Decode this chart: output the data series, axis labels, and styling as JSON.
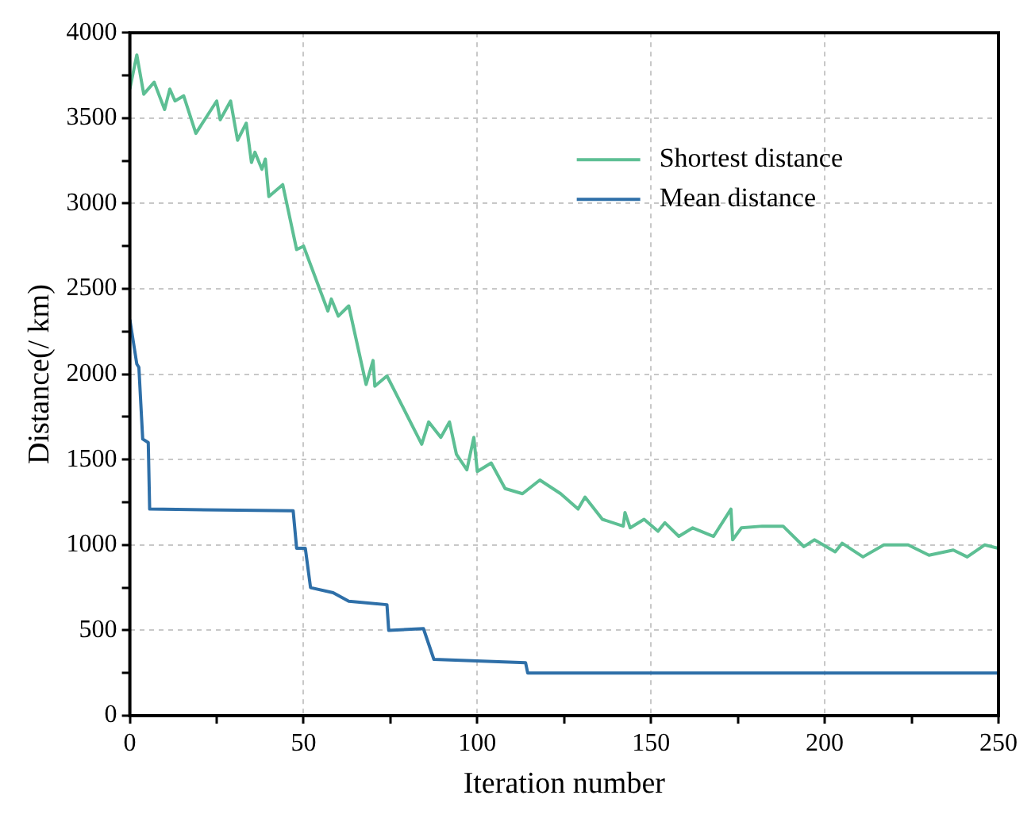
{
  "chart_data": {
    "type": "line",
    "xlabel": "Iteration number",
    "ylabel": "Distance(/ km)",
    "xlim": [
      0,
      250
    ],
    "ylim": [
      0,
      4000
    ],
    "xticks": [
      0,
      {
        "value": 25,
        "label": null
      },
      50,
      {
        "value": 75,
        "label": null
      },
      100,
      {
        "value": 125,
        "label": null
      },
      150,
      {
        "value": 175,
        "label": null
      },
      200,
      {
        "value": 225,
        "label": null
      },
      250
    ],
    "yticks": [
      0,
      {
        "value": 250,
        "label": null
      },
      500,
      {
        "value": 750,
        "label": null
      },
      1000,
      {
        "value": 1250,
        "label": null
      },
      1500,
      {
        "value": 1750,
        "label": null
      },
      2000,
      {
        "value": 2250,
        "label": null
      },
      2500,
      {
        "value": 2750,
        "label": null
      },
      3000,
      {
        "value": 3250,
        "label": null
      },
      3500,
      {
        "value": 3750,
        "label": null
      },
      4000
    ],
    "grid": true,
    "legend": "top right",
    "marker": "none",
    "line_style": "solid",
    "series": [
      {
        "name": "Shortest distance",
        "color": "#5dbf94",
        "x": [
          0,
          2,
          4,
          7,
          10,
          11.5,
          13,
          15.5,
          19,
          25,
          26,
          29,
          31,
          33.5,
          35,
          36,
          38,
          39,
          40,
          44,
          48,
          50,
          57,
          58,
          60,
          63,
          68,
          70,
          70.5,
          74,
          84,
          86,
          89.5,
          92,
          94,
          97,
          99,
          100,
          104,
          108,
          113,
          118,
          124,
          129,
          131,
          136,
          142,
          142.5,
          144,
          148,
          152,
          154,
          158,
          162,
          168,
          173,
          173.5,
          176,
          182,
          188,
          194,
          197,
          203,
          205,
          211,
          217,
          224,
          230,
          237,
          241,
          246,
          250
        ],
        "values": [
          3670,
          3870,
          3640,
          3710,
          3550,
          3670,
          3600,
          3630,
          3410,
          3600,
          3490,
          3600,
          3370,
          3470,
          3240,
          3300,
          3200,
          3260,
          3040,
          3110,
          2730,
          2750,
          2370,
          2440,
          2340,
          2400,
          1940,
          2080,
          1930,
          1990,
          1590,
          1720,
          1630,
          1720,
          1530,
          1440,
          1630,
          1430,
          1480,
          1330,
          1300,
          1380,
          1300,
          1210,
          1280,
          1150,
          1110,
          1190,
          1100,
          1150,
          1080,
          1130,
          1050,
          1100,
          1050,
          1210,
          1030,
          1100,
          1110,
          1110,
          990,
          1030,
          960,
          1010,
          930,
          1000,
          1000,
          940,
          970,
          930,
          1000,
          980
        ]
      },
      {
        "name": "Mean distance",
        "color": "#2e6fa8",
        "x": [
          0,
          2,
          2.6,
          3.7,
          5.3,
          5.7,
          47,
          48,
          50.5,
          52,
          58.5,
          63,
          74,
          74.5,
          84.5,
          87.5,
          113.9,
          114.5,
          250
        ],
        "values": [
          2320,
          2060,
          2040,
          1620,
          1600,
          1210,
          1200,
          980,
          980,
          750,
          720,
          670,
          650,
          500,
          510,
          330,
          310,
          250,
          250
        ]
      }
    ]
  }
}
